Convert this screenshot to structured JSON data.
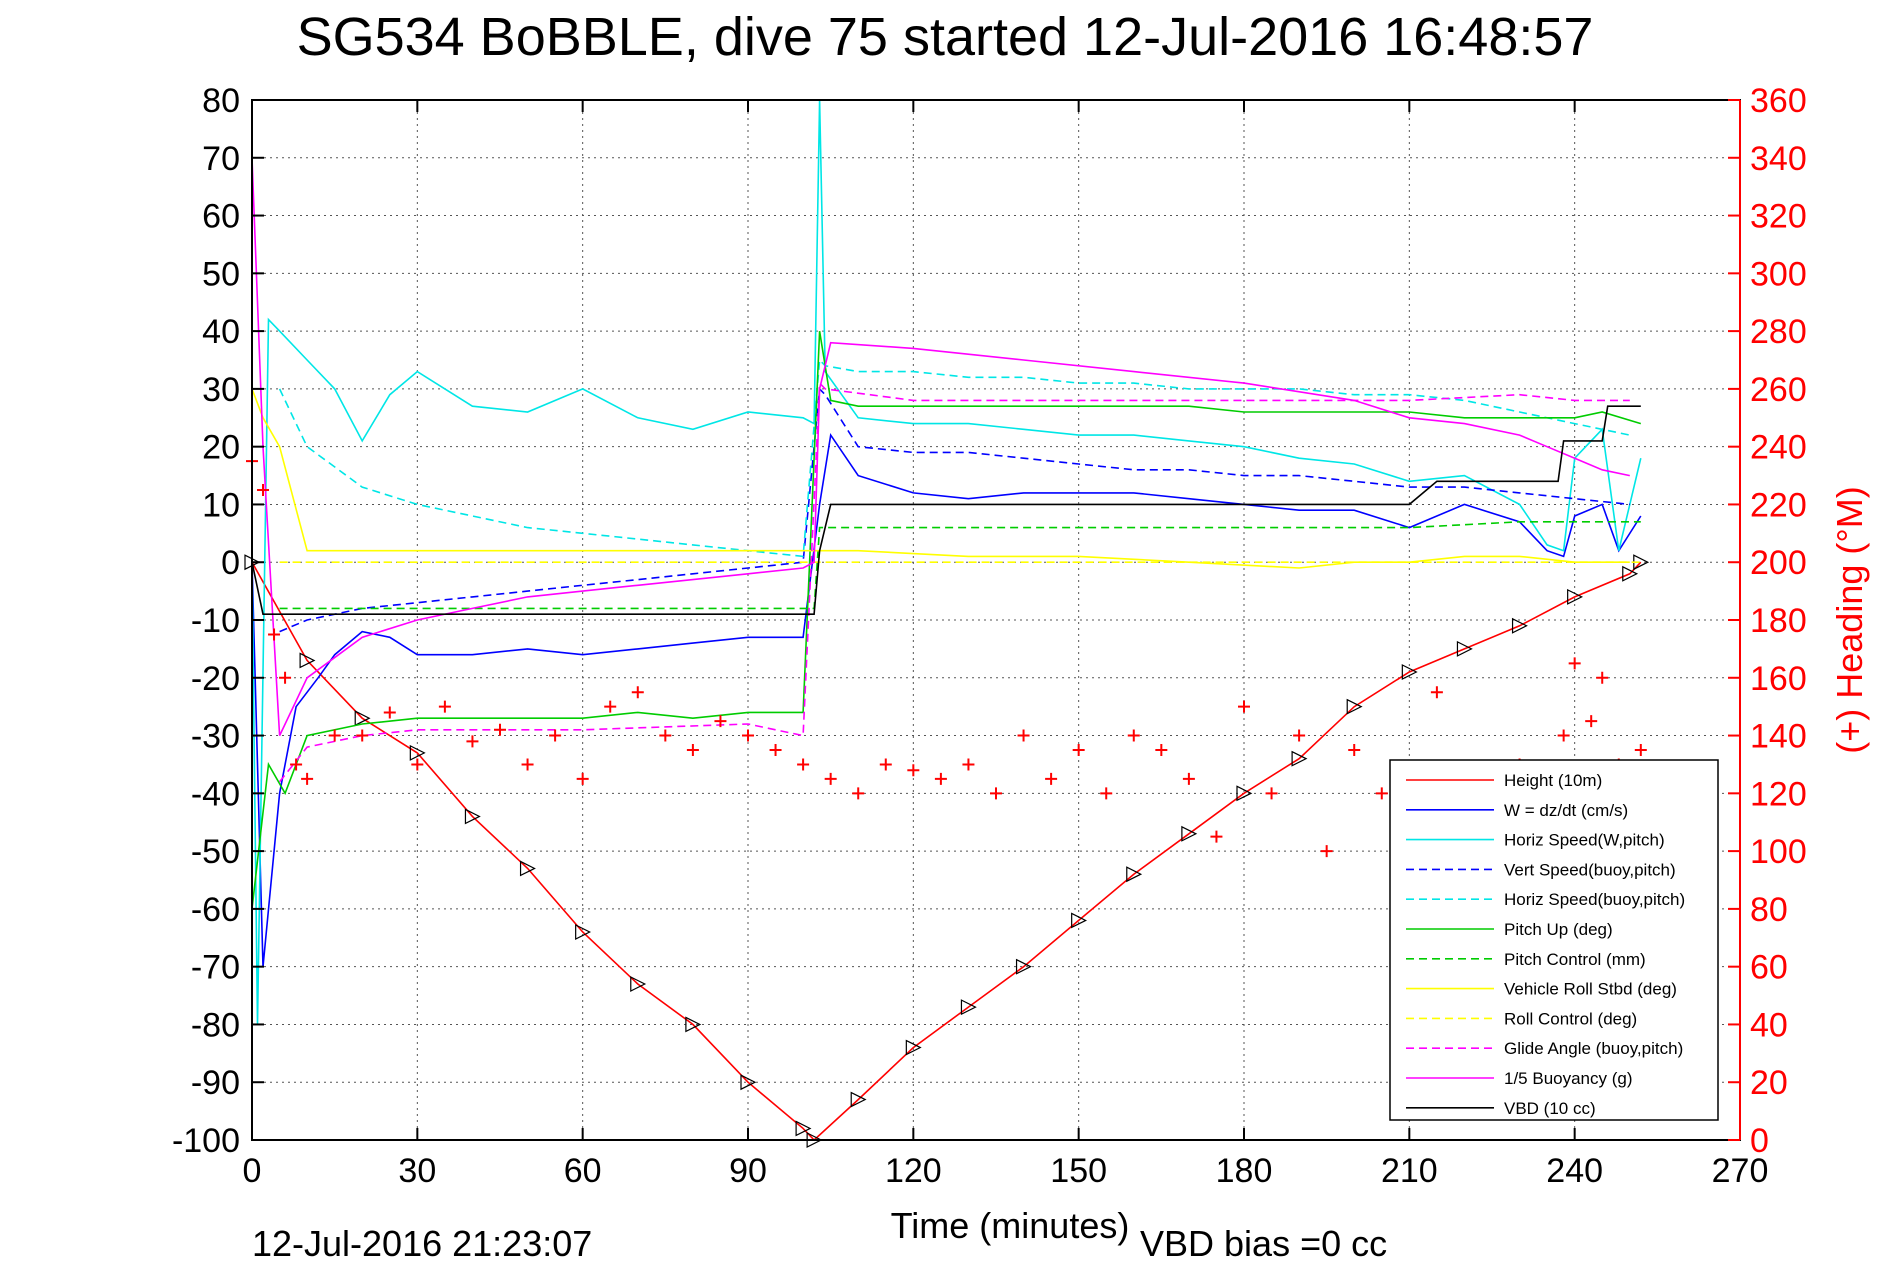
{
  "chart_data": {
    "type": "line",
    "title": "SG534 BoBBLE, dive 75 started 12-Jul-2016 16:48:57",
    "xlabel": "Time (minutes)",
    "ylabel": "",
    "y2label": "(+) Heading (°M)",
    "xlim": [
      0,
      270
    ],
    "ylim": [
      -100,
      80
    ],
    "y2lim": [
      0,
      360
    ],
    "xticks": [
      0,
      30,
      60,
      90,
      120,
      150,
      180,
      210,
      240,
      270
    ],
    "yticks": [
      80,
      70,
      60,
      50,
      40,
      30,
      20,
      10,
      0,
      -10,
      -20,
      -30,
      -40,
      -50,
      -60,
      -70,
      -80,
      -90,
      -100
    ],
    "y2ticks": [
      360,
      340,
      320,
      300,
      280,
      260,
      240,
      220,
      200,
      180,
      160,
      140,
      120,
      100,
      80,
      60,
      40,
      20,
      0
    ],
    "grid": true,
    "legend_position": "bottom-right",
    "footer_left": "12-Jul-2016 21:23:07",
    "footer_right": "VBD bias =0 cc",
    "series": [
      {
        "name": "Height (10m)",
        "color": "#ff0000",
        "style": "solid",
        "markers": "triangle",
        "x": [
          0,
          10,
          20,
          30,
          40,
          50,
          60,
          70,
          80,
          90,
          100,
          102,
          110,
          120,
          130,
          140,
          150,
          160,
          170,
          180,
          190,
          200,
          210,
          220,
          230,
          240,
          250,
          252
        ],
        "y": [
          0,
          -17,
          -27,
          -33,
          -44,
          -53,
          -64,
          -73,
          -80,
          -90,
          -98,
          -100,
          -93,
          -84,
          -77,
          -70,
          -62,
          -54,
          -47,
          -40,
          -34,
          -25,
          -19,
          -15,
          -11,
          -6,
          -2,
          0
        ]
      },
      {
        "name": "W = dz/dt (cm/s)",
        "color": "#0000ff",
        "style": "solid",
        "x": [
          0,
          2,
          5,
          8,
          12,
          15,
          20,
          25,
          30,
          40,
          50,
          60,
          70,
          80,
          90,
          100,
          103,
          105,
          110,
          120,
          130,
          140,
          150,
          160,
          170,
          180,
          190,
          200,
          210,
          220,
          230,
          235,
          238,
          240,
          245,
          248,
          252
        ],
        "y": [
          0,
          -70,
          -40,
          -25,
          -20,
          -16,
          -12,
          -13,
          -16,
          -16,
          -15,
          -16,
          -15,
          -14,
          -13,
          -13,
          10,
          22,
          15,
          12,
          11,
          12,
          12,
          12,
          11,
          10,
          9,
          9,
          6,
          10,
          7,
          2,
          1,
          8,
          10,
          2,
          8
        ]
      },
      {
        "name": "Horiz Speed(W,pitch)",
        "color": "#00e6e6",
        "style": "solid",
        "x": [
          0,
          1,
          3,
          5,
          10,
          15,
          20,
          25,
          30,
          40,
          50,
          60,
          70,
          80,
          90,
          100,
          102,
          103,
          104,
          110,
          120,
          130,
          140,
          150,
          160,
          170,
          180,
          190,
          200,
          210,
          220,
          230,
          235,
          238,
          240,
          245,
          248,
          252
        ],
        "y": [
          0,
          -80,
          42,
          40,
          35,
          30,
          21,
          29,
          33,
          27,
          26,
          30,
          25,
          23,
          26,
          25,
          24,
          80,
          33,
          25,
          24,
          24,
          23,
          22,
          22,
          21,
          20,
          18,
          17,
          14,
          15,
          10,
          3,
          2,
          18,
          23,
          2,
          18
        ]
      },
      {
        "name": "Vert Speed(buoy,pitch)",
        "color": "#0000ff",
        "style": "dashed",
        "x": [
          5,
          10,
          20,
          30,
          40,
          50,
          60,
          70,
          80,
          90,
          100,
          103,
          104,
          110,
          120,
          130,
          140,
          150,
          160,
          170,
          180,
          190,
          200,
          210,
          220,
          230,
          240,
          250
        ],
        "y": [
          -12,
          -10,
          -8,
          -7,
          -6,
          -5,
          -4,
          -3,
          -2,
          -1,
          0,
          30,
          29,
          20,
          19,
          19,
          18,
          17,
          16,
          16,
          15,
          15,
          14,
          13,
          13,
          12,
          11,
          10
        ]
      },
      {
        "name": "Horiz Speed(buoy,pitch)",
        "color": "#00e6e6",
        "style": "dashed",
        "x": [
          5,
          10,
          20,
          30,
          40,
          50,
          60,
          70,
          80,
          90,
          100,
          103,
          104,
          110,
          120,
          130,
          140,
          150,
          160,
          170,
          180,
          190,
          200,
          210,
          220,
          230,
          240,
          250
        ],
        "y": [
          30,
          20,
          13,
          10,
          8,
          6,
          5,
          4,
          3,
          2,
          1,
          35,
          34,
          33,
          33,
          32,
          32,
          31,
          31,
          30,
          30,
          30,
          29,
          29,
          28,
          26,
          24,
          22
        ]
      },
      {
        "name": "Pitch Up (deg)",
        "color": "#00cc00",
        "style": "solid",
        "x": [
          0,
          3,
          6,
          10,
          20,
          30,
          40,
          50,
          60,
          70,
          80,
          90,
          100,
          103,
          105,
          110,
          120,
          130,
          140,
          150,
          160,
          170,
          180,
          190,
          200,
          210,
          220,
          230,
          240,
          245,
          252
        ],
        "y": [
          -60,
          -35,
          -40,
          -30,
          -28,
          -27,
          -27,
          -27,
          -27,
          -26,
          -27,
          -26,
          -26,
          40,
          28,
          27,
          27,
          27,
          27,
          27,
          27,
          27,
          26,
          26,
          26,
          26,
          25,
          25,
          25,
          26,
          24
        ]
      },
      {
        "name": "Pitch Control (mm)",
        "color": "#00cc00",
        "style": "dashed",
        "x": [
          5,
          10,
          30,
          60,
          90,
          102,
          103,
          105,
          110,
          130,
          150,
          170,
          190,
          210,
          230,
          240,
          252
        ],
        "y": [
          -8,
          -8,
          -8,
          -8,
          -8,
          -8,
          6,
          6,
          6,
          6,
          6,
          6,
          6,
          6,
          7,
          7,
          7
        ]
      },
      {
        "name": "Vehicle Roll Stbd (deg)",
        "color": "#ffff00",
        "style": "solid",
        "x": [
          0,
          2,
          5,
          10,
          20,
          40,
          60,
          80,
          100,
          103,
          110,
          130,
          150,
          170,
          190,
          200,
          210,
          220,
          230,
          240,
          250
        ],
        "y": [
          30,
          25,
          20,
          2,
          2,
          2,
          2,
          2,
          2,
          2,
          2,
          1,
          1,
          0,
          -1,
          0,
          0,
          1,
          1,
          0,
          0
        ]
      },
      {
        "name": "Roll Control (deg)",
        "color": "#ffff00",
        "style": "dashed",
        "x": [
          5,
          50,
          103,
          150,
          200,
          252
        ],
        "y": [
          0,
          0,
          0,
          0,
          0,
          0
        ]
      },
      {
        "name": "Glide Angle (buoy,pitch)",
        "color": "#ff00ff",
        "style": "dashed",
        "x": [
          5,
          10,
          20,
          30,
          60,
          90,
          100,
          103,
          104,
          120,
          150,
          180,
          210,
          230,
          240,
          250
        ],
        "y": [
          -38,
          -32,
          -30,
          -29,
          -29,
          -28,
          -30,
          31,
          30,
          28,
          28,
          28,
          28,
          29,
          28,
          28
        ]
      },
      {
        "name": "1/5 Buoyancy (g)",
        "color": "#ff00ff",
        "style": "solid",
        "x": [
          0,
          2,
          5,
          10,
          20,
          30,
          40,
          50,
          60,
          70,
          80,
          90,
          100,
          102,
          103,
          105,
          120,
          140,
          160,
          180,
          200,
          210,
          220,
          230,
          235,
          240,
          245,
          250
        ],
        "y": [
          70,
          20,
          -30,
          -20,
          -13,
          -10,
          -8,
          -6,
          -5,
          -4,
          -3,
          -2,
          -1,
          0,
          30,
          38,
          37,
          35,
          33,
          31,
          28,
          25,
          24,
          22,
          20,
          18,
          16,
          15
        ]
      },
      {
        "name": "VBD (10 cc)",
        "color": "#000000",
        "style": "solid",
        "x": [
          0,
          2,
          10,
          30,
          60,
          90,
          102,
          103,
          105,
          120,
          150,
          180,
          200,
          210,
          215,
          220,
          230,
          237,
          238,
          245,
          246,
          252
        ],
        "y": [
          0,
          -9,
          -9,
          -9,
          -9,
          -9,
          -9,
          2,
          10,
          10,
          10,
          10,
          10,
          10,
          14,
          14,
          14,
          14,
          21,
          21,
          27,
          27
        ]
      },
      {
        "name": "Heading",
        "axis": "right",
        "color": "#ff0000",
        "style": "markers",
        "marker": "+",
        "x": [
          0,
          2,
          4,
          6,
          8,
          10,
          15,
          20,
          25,
          30,
          35,
          40,
          45,
          50,
          55,
          60,
          65,
          70,
          75,
          80,
          85,
          90,
          95,
          100,
          105,
          110,
          115,
          120,
          125,
          130,
          135,
          140,
          145,
          150,
          155,
          160,
          165,
          170,
          175,
          180,
          185,
          190,
          195,
          200,
          205,
          210,
          215,
          220,
          225,
          230,
          235,
          238,
          240,
          243,
          245,
          248,
          252
        ],
        "y": [
          235,
          225,
          175,
          160,
          130,
          125,
          140,
          140,
          148,
          130,
          150,
          138,
          142,
          130,
          140,
          125,
          150,
          155,
          140,
          135,
          145,
          140,
          135,
          130,
          125,
          120,
          130,
          128,
          125,
          130,
          120,
          140,
          125,
          135,
          120,
          140,
          135,
          125,
          105,
          150,
          120,
          140,
          100,
          135,
          120,
          125,
          155,
          110,
          120,
          130,
          125,
          140,
          165,
          145,
          160,
          130,
          135
        ]
      }
    ]
  }
}
